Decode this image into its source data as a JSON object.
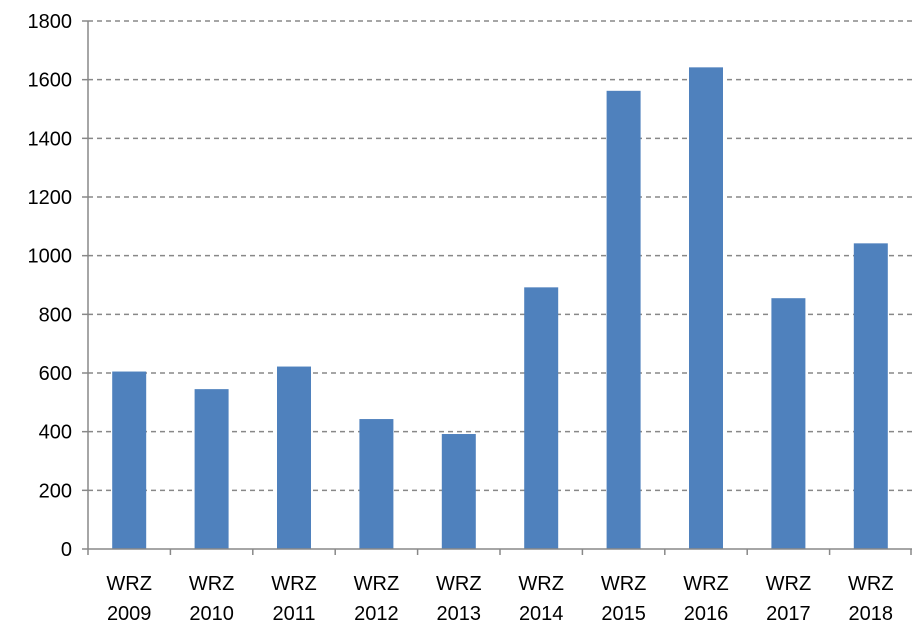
{
  "chart_data": {
    "type": "bar",
    "title": "",
    "xlabel": "",
    "ylabel": "",
    "categories": [
      [
        "WRZ",
        "2009"
      ],
      [
        "WRZ",
        "2010"
      ],
      [
        "WRZ",
        "2011"
      ],
      [
        "WRZ",
        "2012"
      ],
      [
        "WRZ",
        "2013"
      ],
      [
        "WRZ",
        "2014"
      ],
      [
        "WRZ",
        "2015"
      ],
      [
        "WRZ",
        "2016"
      ],
      [
        "WRZ",
        "2017"
      ],
      [
        "WRZ",
        "2018"
      ]
    ],
    "values": [
      605,
      545,
      622,
      443,
      392,
      892,
      1562,
      1642,
      855,
      1042
    ],
    "ylim": [
      0,
      1800
    ],
    "yticks": [
      "0",
      "200",
      "400",
      "600",
      "800",
      "1000",
      "1200",
      "1400",
      "1600",
      "1800"
    ],
    "grid": true,
    "grid_style": "dashed",
    "legend": "none",
    "bar_color": "#4f81bd",
    "grid_color": "#888888",
    "axis_color": "#888888"
  }
}
